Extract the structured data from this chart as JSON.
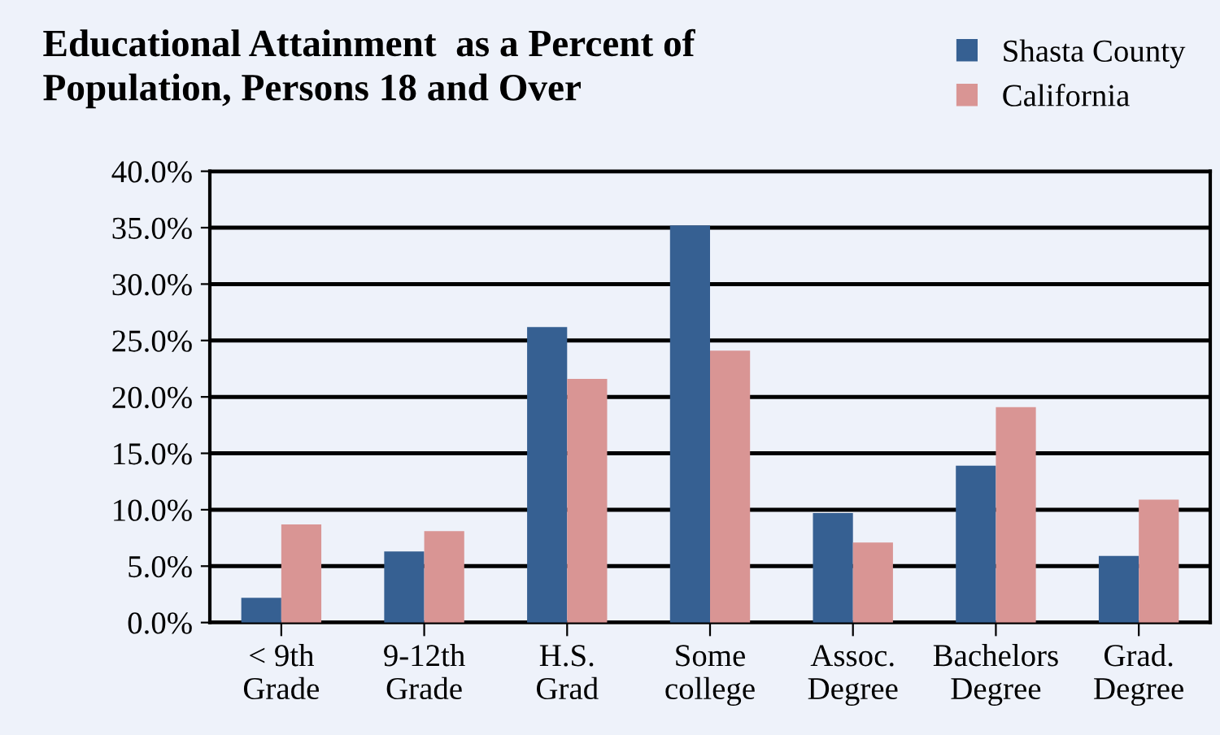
{
  "chart_data": {
    "type": "bar",
    "title": "Educational Attainment  as a Percent of\nPopulation, Persons 18 and Over",
    "categories": [
      "< 9th\nGrade",
      "9-12th\nGrade",
      "H.S.\nGrad",
      "Some\ncollege",
      "Assoc.\nDegree",
      "Bachelors\nDegree",
      "Grad.\nDegree"
    ],
    "series": [
      {
        "name": "Shasta County",
        "color": "#366092",
        "values": [
          2.2,
          6.3,
          26.2,
          35.2,
          9.7,
          13.9,
          5.9
        ]
      },
      {
        "name": "California",
        "color": "#d99594",
        "values": [
          8.7,
          8.1,
          21.6,
          24.1,
          7.1,
          19.1,
          10.9
        ]
      }
    ],
    "ylim": [
      0,
      40
    ],
    "yticks": [
      {
        "value": 0,
        "label": "0.0%"
      },
      {
        "value": 5,
        "label": "5.0%"
      },
      {
        "value": 10,
        "label": "10.0%"
      },
      {
        "value": 15,
        "label": "15.0%"
      },
      {
        "value": 20,
        "label": "20.0%"
      },
      {
        "value": 25,
        "label": "25.0%"
      },
      {
        "value": 30,
        "label": "30.0%"
      },
      {
        "value": 35,
        "label": "35.0%"
      },
      {
        "value": 40,
        "label": "40.0%"
      }
    ],
    "grid": "y",
    "legend": "top right"
  }
}
